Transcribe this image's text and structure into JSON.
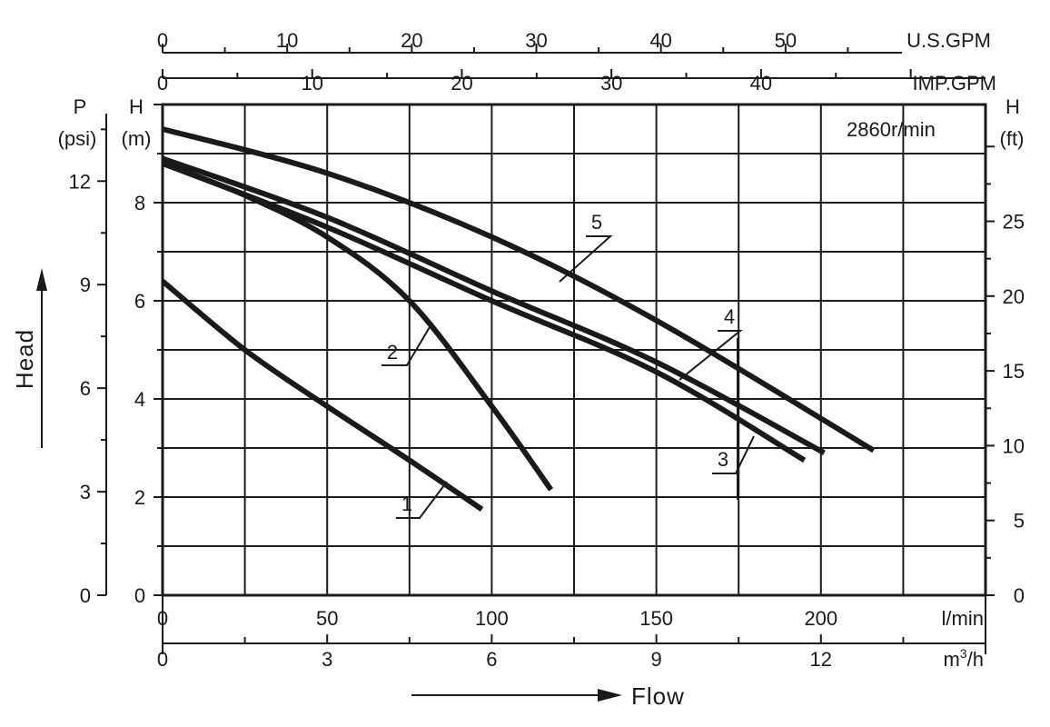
{
  "chart_data": {
    "type": "line",
    "title": "",
    "annotation": "2860r/min",
    "xlabel": "Flow",
    "ylabel": "Head",
    "x_axes": {
      "l_min": {
        "unit": "l/min",
        "range": [
          0,
          250
        ],
        "ticks": [
          0,
          50,
          100,
          150,
          200
        ]
      },
      "m3_h": {
        "unit_base": "m",
        "unit_sup": "3",
        "unit_tail": "/h",
        "range": [
          0,
          15
        ],
        "ticks": [
          0,
          3,
          6,
          9,
          12
        ]
      },
      "us_gpm": {
        "unit": "U.S.GPM",
        "range": [
          0,
          66.05
        ],
        "ticks": [
          0,
          10,
          20,
          30,
          40,
          50
        ]
      },
      "imp_gpm": {
        "unit": "IMP.GPM",
        "range": [
          0,
          55
        ],
        "ticks": [
          0,
          10,
          20,
          30,
          40
        ]
      }
    },
    "y_axes": {
      "m": {
        "unit_top": "H",
        "unit_bottom": "(m)",
        "range": [
          0,
          10
        ],
        "ticks": [
          0,
          2,
          4,
          6,
          8
        ]
      },
      "psi": {
        "unit_top": "P",
        "unit_bottom": "(psi)",
        "range": [
          0,
          14.22
        ],
        "ticks": [
          0,
          3,
          6,
          9,
          12
        ]
      },
      "ft": {
        "unit_top": "H",
        "unit_bottom": "(ft)",
        "range": [
          0,
          32.81
        ],
        "ticks": [
          0,
          5,
          10,
          15,
          20,
          25
        ]
      }
    },
    "grid": true,
    "series": [
      {
        "name": "1",
        "x": [
          0,
          25,
          50,
          75,
          97
        ],
        "y": [
          6.4,
          5.0,
          3.85,
          2.75,
          1.75
        ]
      },
      {
        "name": "2",
        "x": [
          0,
          25,
          50,
          75,
          100,
          118
        ],
        "y": [
          8.8,
          8.15,
          7.3,
          6.0,
          3.85,
          2.15
        ]
      },
      {
        "name": "3",
        "x": [
          0,
          50,
          100,
          150,
          195
        ],
        "y": [
          8.8,
          7.5,
          6.0,
          4.55,
          2.75
        ]
      },
      {
        "name": "4",
        "x": [
          0,
          50,
          100,
          150,
          201
        ],
        "y": [
          8.9,
          7.7,
          6.2,
          4.75,
          2.9
        ]
      },
      {
        "name": "5",
        "x": [
          0,
          50,
          100,
          150,
          216
        ],
        "y": [
          9.5,
          8.6,
          7.3,
          5.6,
          2.95
        ]
      }
    ]
  }
}
